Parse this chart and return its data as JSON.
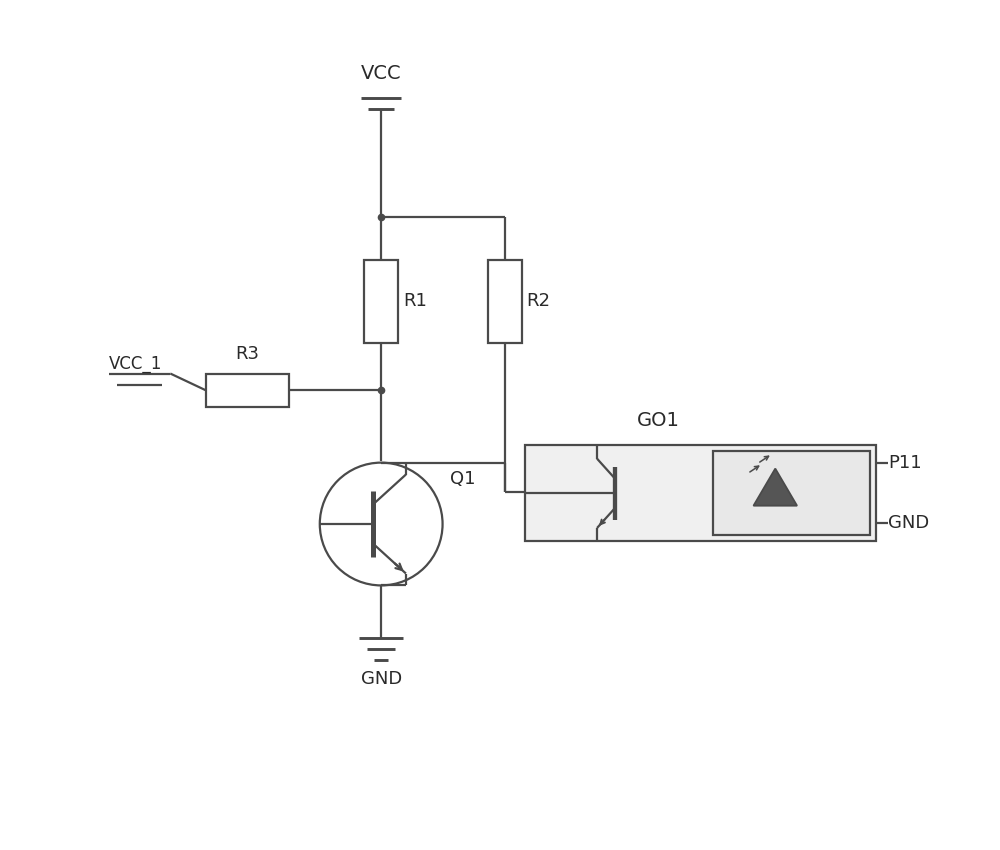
{
  "background_color": "#ffffff",
  "line_color": "#4a4a4a",
  "line_width": 1.6,
  "text_color": "#2a2a2a",
  "vcc_label": "VCC",
  "vcc1_label": "VCC_1",
  "gnd_label": "GND",
  "r1_label": "R1",
  "r2_label": "R2",
  "r3_label": "R3",
  "q1_label": "Q1",
  "go1_label": "GO1",
  "p11_label": "P11",
  "gnd2_label": "GND"
}
